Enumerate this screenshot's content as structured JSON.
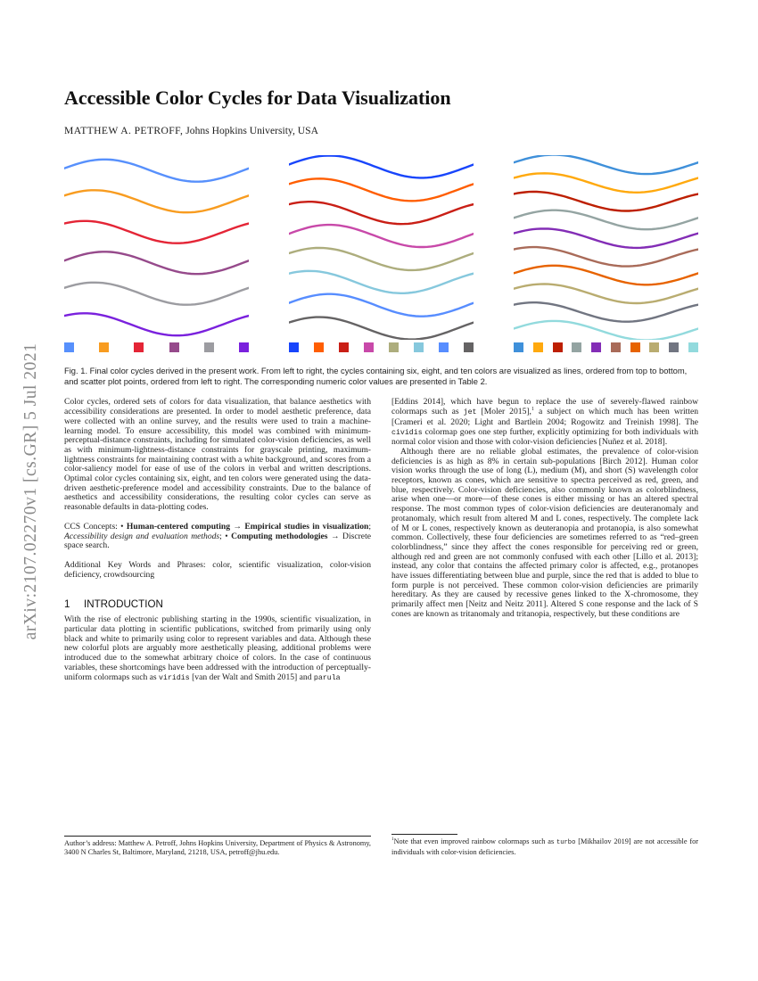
{
  "sidebar": {
    "arxiv_label": "arXiv:2107.02270v1  [cs.GR]  5 Jul 2021"
  },
  "header": {
    "title": "Accessible Color Cycles for Data Visualization",
    "author_name": "MATTHEW A. PETROFF,",
    "author_affiliation": " Johns Hopkins University, USA"
  },
  "figure": {
    "cycles": [
      {
        "name": "six-color cycle",
        "colors": [
          "#5790fc",
          "#f89c20",
          "#e42536",
          "#964a8b",
          "#9c9ca1",
          "#7a21dd"
        ]
      },
      {
        "name": "eight-color cycle",
        "colors": [
          "#1845fb",
          "#ff5e02",
          "#c91f16",
          "#c849a9",
          "#adad7d",
          "#86c8dd",
          "#578dff",
          "#656364"
        ]
      },
      {
        "name": "ten-color cycle",
        "colors": [
          "#3f90da",
          "#ffa90e",
          "#bd1f01",
          "#94a4a2",
          "#832db6",
          "#a96b59",
          "#e76300",
          "#b9ac70",
          "#717581",
          "#92dadd"
        ]
      }
    ],
    "caption_label": "Fig. 1.",
    "caption_text": " Final color cycles derived in the present work. From left to right, the cycles containing six, eight, and ten colors are visualized as lines, ordered from top to bottom, and scatter plot points, ordered from left to right. The corresponding numeric color values are presented in Table 2."
  },
  "abstract": {
    "text": "Color cycles, ordered sets of colors for data visualization, that balance aesthetics with accessibility considerations are presented. In order to model aesthetic preference, data were collected with an online survey, and the results were used to train a machine-learning model. To ensure accessibility, this model was combined with minimum-perceptual-distance constraints, including for simulated color-vision deficiencies, as well as with minimum-lightness-distance constraints for grayscale printing, maximum-lightness constraints for maintaining contrast with a white background, and scores from a color-saliency model for ease of use of the colors in verbal and written descriptions. Optimal color cycles containing six, eight, and ten colors were generated using the data-driven aesthetic-preference model and accessibility constraints. Due to the balance of aesthetics and accessibility considerations, the resulting color cycles can serve as reasonable defaults in data-plotting codes."
  },
  "ccs": {
    "segments": [
      {
        "t": "text",
        "v": "CCS Concepts: • "
      },
      {
        "t": "b",
        "v": "Human-centered computing → Empirical studies in visualization"
      },
      {
        "t": "text",
        "v": "; "
      },
      {
        "t": "i",
        "v": "Accessibility design and evaluation methods"
      },
      {
        "t": "text",
        "v": "; • "
      },
      {
        "t": "b",
        "v": "Computing methodologies"
      },
      {
        "t": "text",
        "v": " → Discrete space search."
      }
    ]
  },
  "keywords": {
    "text": "Additional Key Words and Phrases: color, scientific visualization, color-vision deficiency, crowdsourcing"
  },
  "introduction": {
    "number": "1",
    "title": "INTRODUCTION",
    "paragraph": [
      {
        "t": "text",
        "v": "With the rise of electronic publishing starting in the 1990s, scientific visualization, in particular data plotting in scientific publications, switched from primarily using only black and white to primarily using color to represent variables and data. Although these new colorful plots are arguably more aesthetically pleasing, additional problems were introduced due to the somewhat arbitrary choice of colors. In the case of continuous variables, these shortcomings have been addressed with the introduction of perceptually-uniform colormaps such as "
      },
      {
        "t": "mono",
        "v": "viridis"
      },
      {
        "t": "text",
        "v": " [van der Walt and Smith 2015] and "
      },
      {
        "t": "mono",
        "v": "parula"
      }
    ]
  },
  "author_address": {
    "text": "Author’s address: Matthew A. Petroff, Johns Hopkins University, Department of Physics & Astronomy, 3400 N Charles St, Baltimore, Maryland, 21218, USA, petroff@jhu.edu."
  },
  "right_column": {
    "paragraph1": [
      {
        "t": "text",
        "v": "[Eddins 2014], which have begun to replace the use of severely-flawed rainbow colormaps such as "
      },
      {
        "t": "mono",
        "v": "jet"
      },
      {
        "t": "text",
        "v": " [Moler 2015],"
      },
      {
        "t": "sup",
        "v": "1"
      },
      {
        "t": "text",
        "v": " a subject on which much has been written [Crameri et al. 2020; Light and Bartlein 2004; Rogowitz and Treinish 1998]. The "
      },
      {
        "t": "mono",
        "v": "cividis"
      },
      {
        "t": "text",
        "v": " colormap goes one step further, explicitly optimizing for both individuals with normal color vision and those with color-vision deficiencies [Nuñez et al. 2018]."
      }
    ],
    "paragraph2": [
      {
        "t": "text",
        "v": "Although there are no reliable global estimates, the prevalence of color-vision deficiencies is as high as 8% in certain sub-populations [Birch 2012]. Human color vision works through the use of long (L), medium (M), and short (S) wavelength color receptors, known as cones, which are sensitive to spectra perceived as red, green, and blue, respectively. Color-vision deficiencies, also commonly known as colorblindness, arise when one—or more—of these cones is either missing or has an altered spectral response. The most common types of color-vision deficiencies are deuteranomaly and protanomaly, which result from altered M and L cones, respectively. The complete lack of M or L cones, respectively known as deuteranopia and protanopia, is also somewhat common. Collectively, these four deficiencies are sometimes referred to as “red–green colorblindness,” since they affect the cones responsible for perceiving red or green, although red and green are not commonly confused with each other [Lillo et al. 2013]; instead, any color that contains the affected primary color is affected, e.g., protanopes have issues differentiating between blue and purple, since the red that is added to blue to form purple is not perceived. These common color-vision deficiencies are primarily hereditary. As they are caused by recessive genes linked to the X-chromosome, they primarily affect men [Neitz and Neitz 2011]. Altered S cone response and the lack of S cones are known as tritanomaly and tritanopia, respectively, but these conditions are"
      }
    ]
  },
  "footnote": {
    "segments": [
      {
        "t": "sup",
        "v": "1"
      },
      {
        "t": "text",
        "v": "Note that even improved rainbow colormaps such as "
      },
      {
        "t": "mono",
        "v": "turbo"
      },
      {
        "t": "text",
        "v": " [Mikhailov 2019] are not accessible for individuals with color-vision deficiencies."
      }
    ]
  }
}
